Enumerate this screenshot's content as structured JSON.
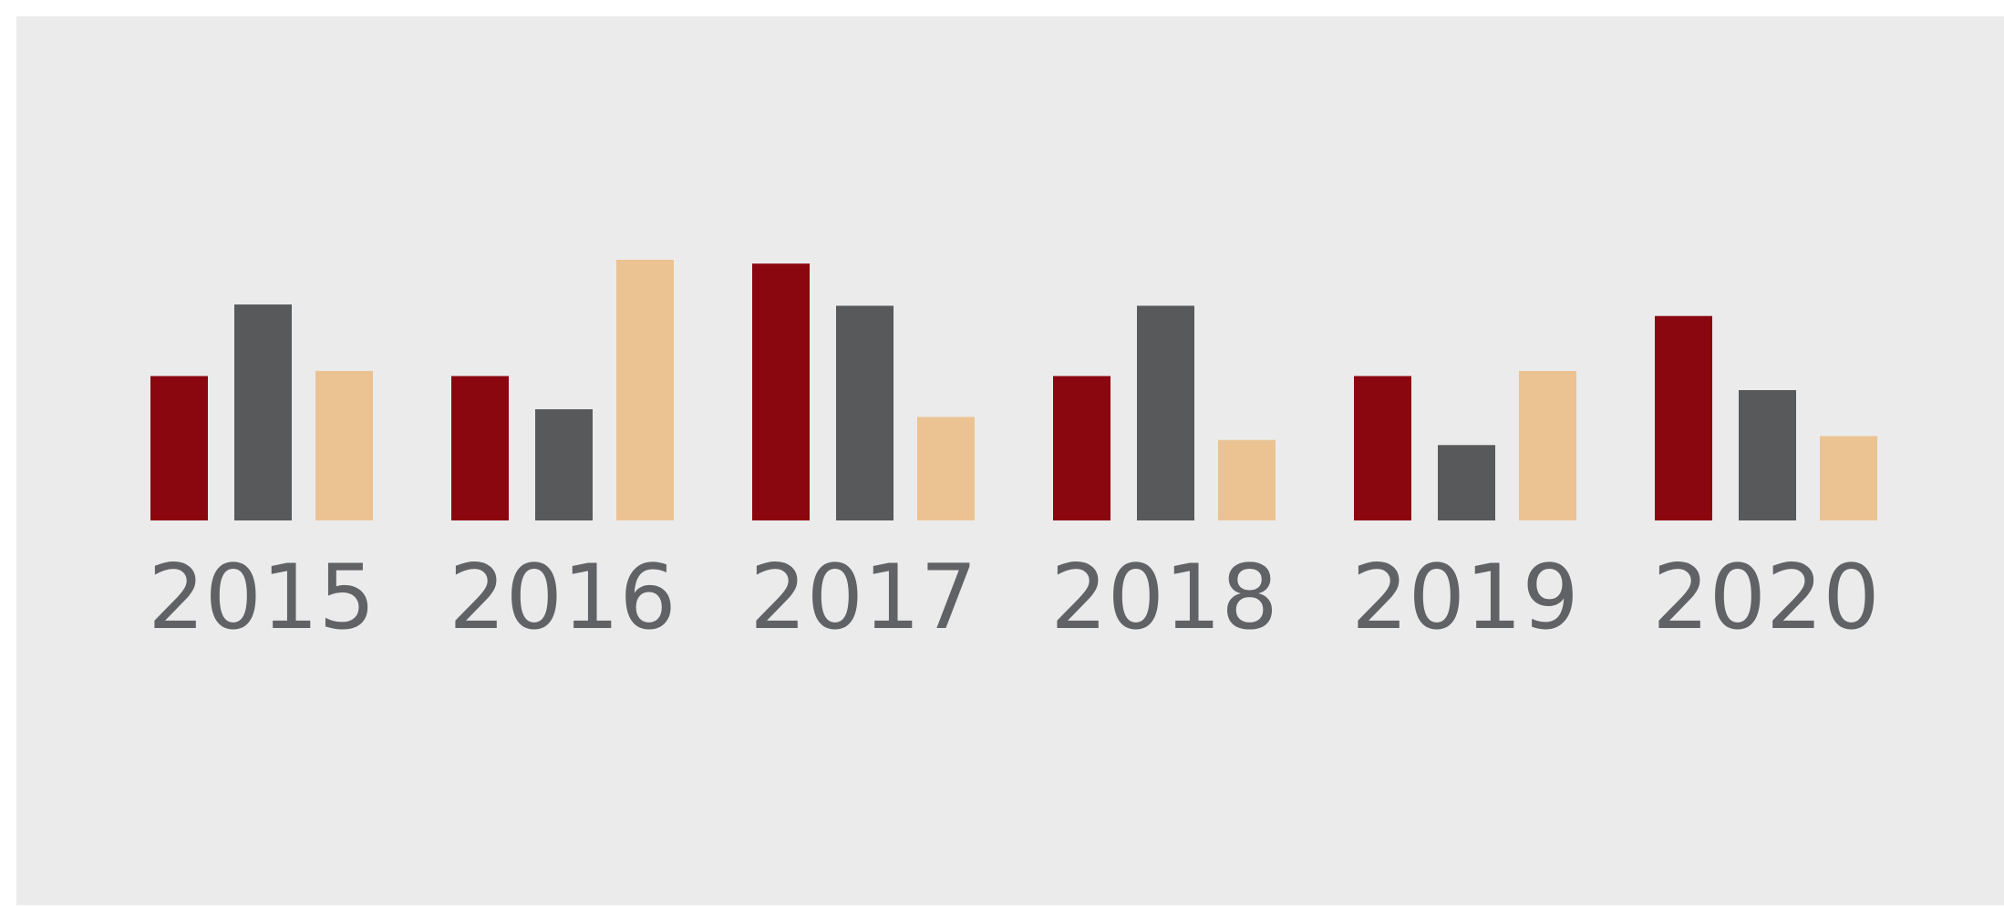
{
  "chart_data": {
    "type": "bar",
    "categories": [
      "2015",
      "2016",
      "2017",
      "2018",
      "2019",
      "2020"
    ],
    "series": [
      {
        "color": "#8b0710",
        "values": [
          113,
          113,
          201,
          113,
          113,
          160
        ]
      },
      {
        "color": "#58595b",
        "values": [
          169,
          87,
          168,
          168,
          59,
          102
        ]
      },
      {
        "color": "#ebc393",
        "values": [
          117,
          204,
          81,
          63,
          117,
          66
        ]
      }
    ]
  }
}
